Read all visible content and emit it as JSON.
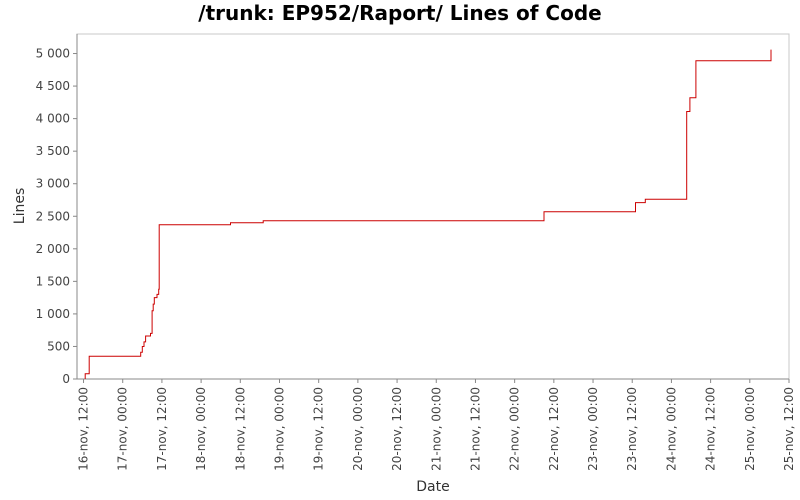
{
  "chart_data": {
    "type": "line",
    "title": "/trunk: EP952/Raport/ Lines of Code",
    "xlabel": "Date",
    "ylabel": "Lines",
    "ylim": [
      0,
      5300
    ],
    "xlim": [
      "2009-11-16T10:00",
      "2009-11-25T12:00"
    ],
    "y_ticks": [
      0,
      500,
      1000,
      1500,
      2000,
      2500,
      3000,
      3500,
      4000,
      4500,
      5000
    ],
    "y_tick_labels": [
      "0",
      "500",
      "1 000",
      "1 500",
      "2 000",
      "2 500",
      "3 000",
      "3 500",
      "4 000",
      "4 500",
      "5 000"
    ],
    "x_ticks": [
      "2009-11-16T12:00",
      "2009-11-17T00:00",
      "2009-11-17T12:00",
      "2009-11-18T00:00",
      "2009-11-18T12:00",
      "2009-11-19T00:00",
      "2009-11-19T12:00",
      "2009-11-20T00:00",
      "2009-11-20T12:00",
      "2009-11-21T00:00",
      "2009-11-21T12:00",
      "2009-11-22T00:00",
      "2009-11-22T12:00",
      "2009-11-23T00:00",
      "2009-11-23T12:00",
      "2009-11-24T00:00",
      "2009-11-24T12:00",
      "2009-11-25T00:00",
      "2009-11-25T12:00"
    ],
    "x_tick_labels": [
      "16-nov, 12:00",
      "17-nov, 00:00",
      "17-nov, 12:00",
      "18-nov, 00:00",
      "18-nov, 12:00",
      "19-nov, 00:00",
      "19-nov, 12:00",
      "20-nov, 00:00",
      "20-nov, 12:00",
      "21-nov, 00:00",
      "21-nov, 12:00",
      "22-nov, 00:00",
      "22-nov, 12:00",
      "23-nov, 00:00",
      "23-nov, 12:00",
      "24-nov, 00:00",
      "24-nov, 12:00",
      "25-nov, 00:00",
      "25-nov, 12:00"
    ],
    "step": true,
    "grid": false,
    "series": [
      {
        "color": "#cc0000",
        "x": [
          "2009-11-16T12:30",
          "2009-11-16T13:45",
          "2009-11-17T05:30",
          "2009-11-17T06:00",
          "2009-11-17T06:30",
          "2009-11-17T07:00",
          "2009-11-17T08:30",
          "2009-11-17T09:00",
          "2009-11-17T09:20",
          "2009-11-17T09:40",
          "2009-11-17T10:30",
          "2009-11-17T11:00",
          "2009-11-17T11:10",
          "2009-11-18T09:00",
          "2009-11-18T19:00",
          "2009-11-22T09:00",
          "2009-11-23T13:00",
          "2009-11-23T16:00",
          "2009-11-24T04:40",
          "2009-11-24T05:40",
          "2009-11-24T07:30",
          "2009-11-25T06:30"
        ],
        "y": [
          80,
          350,
          410,
          500,
          570,
          660,
          700,
          1050,
          1150,
          1250,
          1300,
          1380,
          2370,
          2400,
          2430,
          2570,
          2710,
          2760,
          4110,
          4320,
          4890,
          5060
        ]
      }
    ]
  }
}
